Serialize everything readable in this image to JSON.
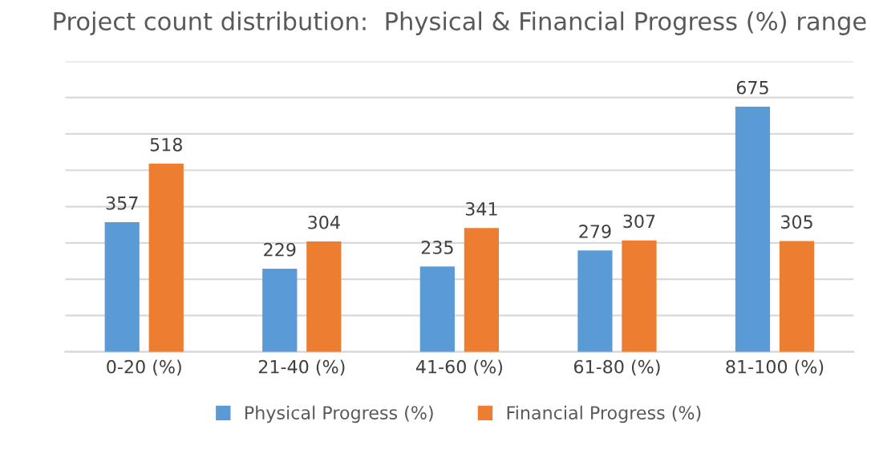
{
  "chart_data": {
    "type": "bar",
    "title": "Project count distribution:  Physical & Financial Progress (%) range",
    "categories": [
      "0-20 (%)",
      "21-40 (%)",
      "41-60 (%)",
      "61-80 (%)",
      "81-100 (%)"
    ],
    "series": [
      {
        "name": "Physical Progress (%)",
        "color": "#5b9bd5",
        "values": [
          357,
          229,
          235,
          279,
          675
        ]
      },
      {
        "name": "Financial Progress (%)",
        "color": "#ed7d31",
        "values": [
          518,
          304,
          341,
          307,
          305
        ]
      }
    ],
    "ylim": [
      0,
      800
    ],
    "yticks": [
      {
        "value": 0,
        "label": null
      },
      {
        "value": 100,
        "label": null
      },
      {
        "value": 200,
        "label": null
      },
      {
        "value": 300,
        "label": null
      },
      {
        "value": 400,
        "label": null
      },
      {
        "value": 500,
        "label": null
      },
      {
        "value": 600,
        "label": null
      },
      {
        "value": 700,
        "label": null
      },
      {
        "value": 800,
        "label": null
      }
    ],
    "tick_labels": "x",
    "grid": "y",
    "legend": "bottom",
    "data_labels": true
  }
}
